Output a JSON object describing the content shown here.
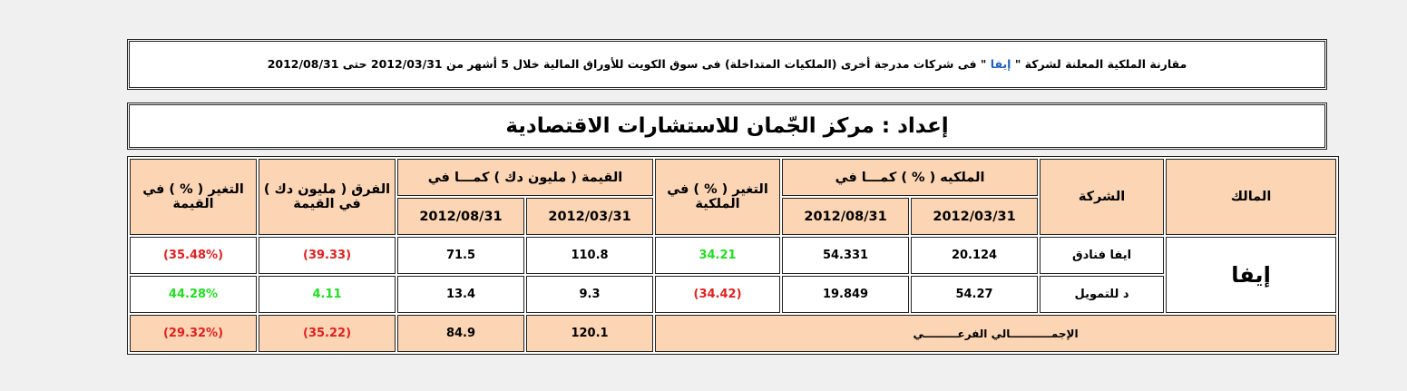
{
  "header": {
    "title_before": "مقارنة الملكية المعلنة لشركة \" ",
    "title_company": "إيفا",
    "title_after": " \" فى شركات مدرجة أخرى (الملكيات المتداخلة) فى سوق الكويت للأوراق المالية خلال 5 أشهر من 2012/03/31 حتى 2012/08/31"
  },
  "subtitle": "إعداد : مركز الجّمان للاستشارات الاقتصادية",
  "table": {
    "columns": {
      "owner": "المالك",
      "company": "الشركة",
      "ownership": "الملكيه ( % ) كمـــا في",
      "ownership_dates": [
        "2012/03/31",
        "2012/08/31"
      ],
      "ownership_change": "التغير ( % ) في الملكية",
      "value": "القيمة ( مليون دك ) كمـــا في",
      "value_dates": [
        "2012/03/31",
        "2012/08/31"
      ],
      "value_diff": "الفرق ( مليون دك ) في القيمة",
      "value_change": "التغير ( % ) في القيمة"
    },
    "owner": "إيفا",
    "rows": [
      {
        "company": "ايفا فنادق",
        "ownership": [
          "20.124",
          "54.331"
        ],
        "ownership_change": "34.21",
        "value": [
          "110.8",
          "71.5"
        ],
        "value_diff": "(39.33)",
        "value_change": "(35.48%)"
      },
      {
        "company": "د للتمويل",
        "ownership": [
          "54.27",
          "19.849"
        ],
        "ownership_change": "(34.42)",
        "value": [
          "9.3",
          "13.4"
        ],
        "value_diff": "4.11",
        "value_change": "44.28%"
      }
    ],
    "total": {
      "label": "الإجمـــــــــــالي الفرعـــــــــي",
      "value": [
        "120.1",
        "84.9"
      ],
      "value_diff": "(35.22)",
      "value_change": "(29.32%)"
    }
  }
}
